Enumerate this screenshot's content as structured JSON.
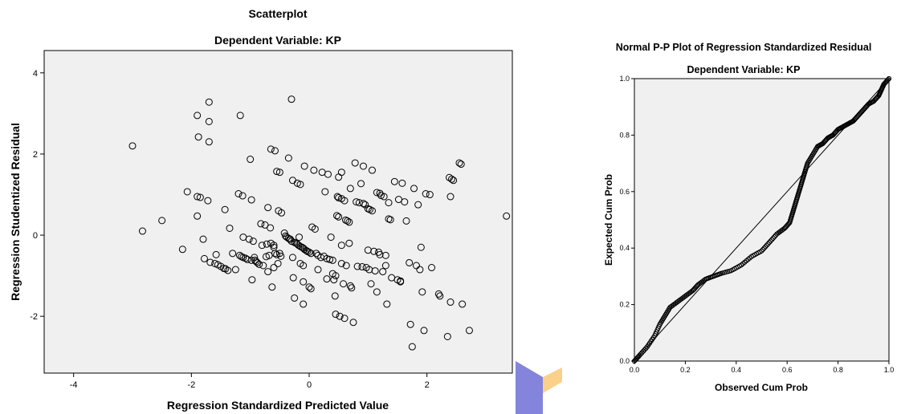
{
  "watermark_colors": [
    "#6f6fd6",
    "#f7c56a"
  ],
  "chart_data": [
    {
      "type": "scatter",
      "title": "Scatterplot",
      "subtitle": "Dependent Variable: KP",
      "xlabel": "Regression Standardized Predicted Value",
      "ylabel": "Regression Studentized Residual",
      "xlim": [
        -4.5,
        3.45
      ],
      "ylim": [
        -3.4,
        4.55
      ],
      "xticks": [
        -4,
        -2,
        0,
        2
      ],
      "yticks": [
        -2,
        0,
        2,
        4
      ],
      "plot_background": "#f0f0f0",
      "marker": "open-circle",
      "points": [
        [
          -3.0,
          2.2
        ],
        [
          -2.83,
          0.1
        ],
        [
          -2.5,
          0.36
        ],
        [
          -2.15,
          -0.35
        ],
        [
          -2.07,
          1.07
        ],
        [
          -1.9,
          2.95
        ],
        [
          -1.88,
          2.42
        ],
        [
          -1.9,
          0.95
        ],
        [
          -1.85,
          0.93
        ],
        [
          -1.9,
          0.47
        ],
        [
          -1.8,
          -0.1
        ],
        [
          -1.78,
          -0.58
        ],
        [
          -1.72,
          0.85
        ],
        [
          -1.7,
          3.28
        ],
        [
          -1.7,
          2.8
        ],
        [
          -1.7,
          2.3
        ],
        [
          -1.68,
          -0.67
        ],
        [
          -1.6,
          -0.7
        ],
        [
          -1.55,
          -0.73
        ],
        [
          -1.5,
          -0.77
        ],
        [
          -1.45,
          -0.82
        ],
        [
          -1.43,
          0.63
        ],
        [
          -1.42,
          -0.83
        ],
        [
          -1.38,
          -0.87
        ],
        [
          -1.35,
          0.17
        ],
        [
          -1.3,
          -0.45
        ],
        [
          -1.25,
          -0.85
        ],
        [
          -1.2,
          1.02
        ],
        [
          -1.18,
          -0.5
        ],
        [
          -1.17,
          2.95
        ],
        [
          -1.15,
          -0.53
        ],
        [
          -1.13,
          0.97
        ],
        [
          -1.12,
          -0.55
        ],
        [
          -1.08,
          -0.57
        ],
        [
          -1.05,
          -0.6
        ],
        [
          -1.02,
          -0.1
        ],
        [
          -1.0,
          1.87
        ],
        [
          -0.98,
          0.87
        ],
        [
          -0.98,
          -0.62
        ],
        [
          -0.97,
          -1.1
        ],
        [
          -0.95,
          -0.15
        ],
        [
          -0.93,
          -0.55
        ],
        [
          -0.9,
          -0.65
        ],
        [
          -0.88,
          -0.68
        ],
        [
          -0.85,
          -0.72
        ],
        [
          -0.82,
          0.28
        ],
        [
          -0.8,
          -0.25
        ],
        [
          -0.78,
          -0.75
        ],
        [
          -0.75,
          0.25
        ],
        [
          -0.73,
          -0.53
        ],
        [
          -0.72,
          -0.22
        ],
        [
          -0.7,
          0.68
        ],
        [
          -0.68,
          -0.5
        ],
        [
          -0.66,
          0.18
        ],
        [
          -0.65,
          -0.2
        ],
        [
          -0.6,
          -0.25
        ],
        [
          -0.6,
          -0.3
        ],
        [
          -0.58,
          -0.45
        ],
        [
          -0.55,
          -0.48
        ],
        [
          -0.53,
          -0.7
        ],
        [
          -0.5,
          -0.45
        ],
        [
          -0.48,
          -0.52
        ],
        [
          -0.6,
          -0.8
        ],
        [
          -0.63,
          -1.28
        ],
        [
          -0.65,
          2.12
        ],
        [
          -0.58,
          2.08
        ],
        [
          -0.55,
          1.57
        ],
        [
          -0.5,
          1.55
        ],
        [
          -0.52,
          0.6
        ],
        [
          -0.47,
          0.55
        ],
        [
          -0.42,
          0.05
        ],
        [
          -0.4,
          -0.02
        ],
        [
          -0.38,
          -0.05
        ],
        [
          -0.35,
          -0.08
        ],
        [
          -0.33,
          -0.1
        ],
        [
          -0.3,
          -0.15
        ],
        [
          -0.28,
          -0.55
        ],
        [
          -0.27,
          -1.05
        ],
        [
          -0.25,
          -1.55
        ],
        [
          -0.35,
          1.9
        ],
        [
          -0.32,
          -0.1
        ],
        [
          -0.3,
          3.35
        ],
        [
          -0.28,
          1.35
        ],
        [
          -0.25,
          -0.18
        ],
        [
          -0.22,
          -0.2
        ],
        [
          -0.2,
          -0.22
        ],
        [
          -0.18,
          -0.25
        ],
        [
          -0.17,
          -0.05
        ],
        [
          -0.15,
          -0.28
        ],
        [
          -0.12,
          -0.3
        ],
        [
          -0.1,
          -0.32
        ],
        [
          -0.08,
          -0.35
        ],
        [
          -0.05,
          -0.38
        ],
        [
          -0.03,
          -0.4
        ],
        [
          0.0,
          -0.42
        ],
        [
          0.03,
          -0.45
        ],
        [
          -0.2,
          1.28
        ],
        [
          -0.15,
          1.25
        ],
        [
          -0.15,
          -0.7
        ],
        [
          -0.1,
          -0.75
        ],
        [
          -0.1,
          -1.15
        ],
        [
          -0.1,
          -1.7
        ],
        [
          -0.08,
          1.7
        ],
        [
          0.0,
          -1.28
        ],
        [
          0.03,
          -1.32
        ],
        [
          0.05,
          0.2
        ],
        [
          0.1,
          0.15
        ],
        [
          0.08,
          1.6
        ],
        [
          0.12,
          -0.45
        ],
        [
          0.15,
          -0.5
        ],
        [
          0.15,
          -0.85
        ],
        [
          0.2,
          -0.55
        ],
        [
          0.22,
          1.55
        ],
        [
          0.25,
          -0.52
        ],
        [
          0.27,
          1.07
        ],
        [
          0.3,
          -0.58
        ],
        [
          0.3,
          -1.08
        ],
        [
          0.32,
          1.5
        ],
        [
          0.35,
          -0.6
        ],
        [
          0.37,
          -0.05
        ],
        [
          0.4,
          -0.62
        ],
        [
          0.4,
          -0.95
        ],
        [
          0.42,
          -1.1
        ],
        [
          0.44,
          -1.5
        ],
        [
          0.45,
          -1.0
        ],
        [
          0.45,
          -1.95
        ],
        [
          0.47,
          0.48
        ],
        [
          0.5,
          0.45
        ],
        [
          0.48,
          0.95
        ],
        [
          0.5,
          0.92
        ],
        [
          0.5,
          1.43
        ],
        [
          0.52,
          -2.0
        ],
        [
          0.55,
          -0.25
        ],
        [
          0.55,
          -0.7
        ],
        [
          0.55,
          0.9
        ],
        [
          0.58,
          -1.2
        ],
        [
          0.6,
          0.85
        ],
        [
          0.6,
          -2.05
        ],
        [
          0.62,
          0.37
        ],
        [
          0.63,
          -0.75
        ],
        [
          0.65,
          0.35
        ],
        [
          0.68,
          0.32
        ],
        [
          0.68,
          -0.2
        ],
        [
          0.7,
          -1.25
        ],
        [
          0.7,
          1.15
        ],
        [
          0.72,
          -1.3
        ],
        [
          0.75,
          -2.15
        ],
        [
          0.78,
          1.78
        ],
        [
          0.8,
          0.82
        ],
        [
          0.82,
          -0.77
        ],
        [
          0.85,
          0.8
        ],
        [
          0.88,
          1.27
        ],
        [
          0.9,
          -0.78
        ],
        [
          0.92,
          1.7
        ],
        [
          0.92,
          0.78
        ],
        [
          0.95,
          0.75
        ],
        [
          0.97,
          -0.8
        ],
        [
          1.0,
          -0.37
        ],
        [
          1.0,
          0.65
        ],
        [
          1.02,
          -0.85
        ],
        [
          1.03,
          0.63
        ],
        [
          1.05,
          -1.2
        ],
        [
          1.07,
          0.6
        ],
        [
          1.07,
          1.6
        ],
        [
          1.1,
          -0.4
        ],
        [
          1.12,
          -0.88
        ],
        [
          1.15,
          1.05
        ],
        [
          1.18,
          -0.42
        ],
        [
          1.2,
          1.03
        ],
        [
          1.2,
          -0.48
        ],
        [
          1.22,
          0.98
        ],
        [
          1.25,
          -0.9
        ],
        [
          1.27,
          0.95
        ],
        [
          1.3,
          -0.5
        ],
        [
          1.32,
          -1.7
        ],
        [
          1.15,
          -1.4
        ],
        [
          1.35,
          0.8
        ],
        [
          1.35,
          0.4
        ],
        [
          1.38,
          0.38
        ],
        [
          1.4,
          -1.05
        ],
        [
          1.45,
          1.32
        ],
        [
          1.5,
          -1.1
        ],
        [
          1.52,
          0.88
        ],
        [
          1.55,
          -1.13
        ],
        [
          1.58,
          1.28
        ],
        [
          1.55,
          -1.15
        ],
        [
          1.62,
          0.82
        ],
        [
          1.65,
          0.35
        ],
        [
          1.7,
          -0.68
        ],
        [
          1.72,
          -2.2
        ],
        [
          1.75,
          -2.75
        ],
        [
          1.78,
          1.15
        ],
        [
          1.82,
          -0.75
        ],
        [
          1.85,
          0.75
        ],
        [
          1.88,
          -0.85
        ],
        [
          1.9,
          -0.3
        ],
        [
          1.92,
          -1.4
        ],
        [
          1.95,
          -2.35
        ],
        [
          1.98,
          1.02
        ],
        [
          2.05,
          1.0
        ],
        [
          2.08,
          -0.8
        ],
        [
          2.2,
          -1.45
        ],
        [
          2.22,
          -1.5
        ],
        [
          2.35,
          -2.5
        ],
        [
          2.38,
          1.42
        ],
        [
          2.42,
          1.38
        ],
        [
          2.45,
          1.35
        ],
        [
          2.4,
          0.95
        ],
        [
          2.4,
          -1.65
        ],
        [
          2.55,
          1.78
        ],
        [
          2.58,
          1.75
        ],
        [
          2.6,
          -1.7
        ],
        [
          2.72,
          -2.35
        ],
        [
          3.35,
          0.47
        ],
        [
          0.55,
          1.55
        ],
        [
          -1.58,
          -0.48
        ],
        [
          -1.12,
          -0.05
        ],
        [
          -0.92,
          -0.62
        ],
        [
          -0.7,
          -0.9
        ],
        [
          1.3,
          -0.75
        ]
      ]
    },
    {
      "type": "line",
      "title": "Normal P-P Plot of Regression Standardized Residual",
      "subtitle": "Dependent Variable: KP",
      "xlabel": "Observed Cum Prob",
      "ylabel": "Expected Cum Prob",
      "xlim": [
        0,
        1
      ],
      "ylim": [
        0,
        1
      ],
      "xticks": [
        "0.0",
        "0.2",
        "0.4",
        "0.6",
        "0.8",
        "1.0"
      ],
      "yticks": [
        "0.0",
        "0.2",
        "0.4",
        "0.6",
        "0.8",
        "1.0"
      ],
      "reference_line": [
        [
          0,
          0
        ],
        [
          1,
          1
        ]
      ],
      "marker": "open-circle",
      "curve": [
        [
          0.0,
          0.0
        ],
        [
          0.02,
          0.02
        ],
        [
          0.05,
          0.05
        ],
        [
          0.08,
          0.09
        ],
        [
          0.1,
          0.13
        ],
        [
          0.12,
          0.16
        ],
        [
          0.14,
          0.19
        ],
        [
          0.17,
          0.21
        ],
        [
          0.2,
          0.23
        ],
        [
          0.23,
          0.25
        ],
        [
          0.25,
          0.27
        ],
        [
          0.28,
          0.29
        ],
        [
          0.31,
          0.3
        ],
        [
          0.34,
          0.31
        ],
        [
          0.38,
          0.32
        ],
        [
          0.42,
          0.34
        ],
        [
          0.46,
          0.37
        ],
        [
          0.5,
          0.39
        ],
        [
          0.53,
          0.42
        ],
        [
          0.56,
          0.45
        ],
        [
          0.59,
          0.47
        ],
        [
          0.61,
          0.49
        ],
        [
          0.62,
          0.52
        ],
        [
          0.63,
          0.55
        ],
        [
          0.64,
          0.58
        ],
        [
          0.65,
          0.61
        ],
        [
          0.66,
          0.64
        ],
        [
          0.67,
          0.67
        ],
        [
          0.68,
          0.7
        ],
        [
          0.7,
          0.73
        ],
        [
          0.72,
          0.76
        ],
        [
          0.74,
          0.77
        ],
        [
          0.76,
          0.79
        ],
        [
          0.78,
          0.8
        ],
        [
          0.8,
          0.82
        ],
        [
          0.82,
          0.83
        ],
        [
          0.84,
          0.84
        ],
        [
          0.86,
          0.85
        ],
        [
          0.88,
          0.87
        ],
        [
          0.9,
          0.89
        ],
        [
          0.92,
          0.91
        ],
        [
          0.94,
          0.92
        ],
        [
          0.96,
          0.94
        ],
        [
          0.97,
          0.96
        ],
        [
          0.98,
          0.98
        ],
        [
          1.0,
          1.0
        ]
      ]
    }
  ]
}
